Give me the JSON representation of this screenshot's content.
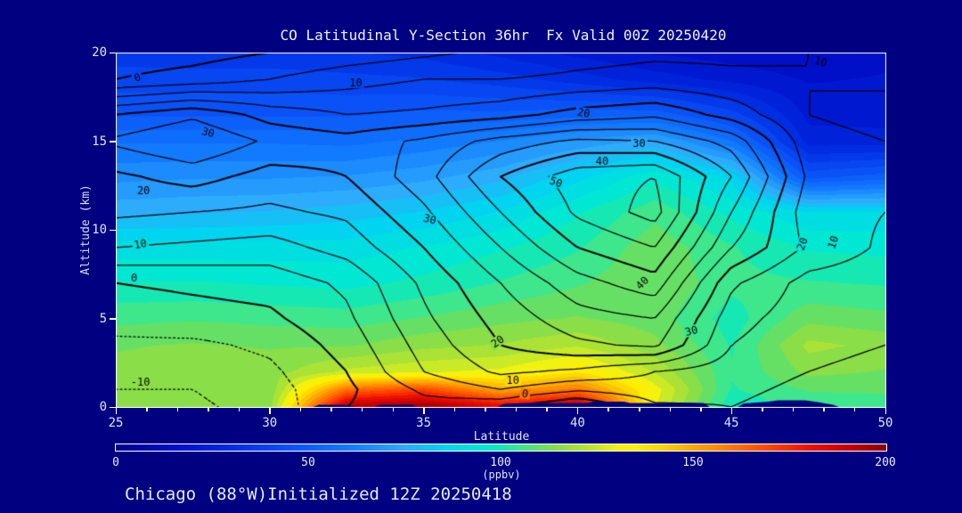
{
  "title": "CO Latitudinal Y-Section 36hr  Fx Valid 00Z 20250420",
  "footer": "Chicago (88°W)Initialized 12Z 20250418",
  "colors": {
    "background": "#010080",
    "frame": "#ffffff",
    "text": "#e8ebf7",
    "contour_line": "#000000",
    "terrain": "#010080"
  },
  "axes": {
    "x": {
      "label": "Latitude",
      "min": 25,
      "max": 50,
      "ticks": [
        25,
        30,
        35,
        40,
        45,
        50
      ],
      "minor_step": 1
    },
    "y": {
      "label": "Altitude (km)",
      "min": 0,
      "max": 20,
      "ticks": [
        0,
        5,
        10,
        15,
        20
      ]
    }
  },
  "colorbar": {
    "min": 0,
    "max": 200,
    "ticks": [
      0,
      50,
      100,
      150,
      200
    ],
    "units": "(ppbv)",
    "stops": [
      [
        0,
        0,
        0,
        140
      ],
      [
        15,
        0,
        15,
        200
      ],
      [
        30,
        0,
        45,
        225
      ],
      [
        45,
        10,
        82,
        248
      ],
      [
        60,
        18,
        122,
        255
      ],
      [
        75,
        45,
        172,
        252
      ],
      [
        85,
        0,
        212,
        240
      ],
      [
        95,
        0,
        232,
        212
      ],
      [
        100,
        22,
        232,
        180
      ],
      [
        105,
        62,
        230,
        140
      ],
      [
        110,
        102,
        224,
        100
      ],
      [
        115,
        138,
        222,
        72
      ],
      [
        120,
        170,
        226,
        54
      ],
      [
        125,
        202,
        233,
        38
      ],
      [
        130,
        242,
        242,
        16
      ],
      [
        135,
        255,
        238,
        0
      ],
      [
        142,
        255,
        210,
        0
      ],
      [
        150,
        255,
        168,
        0
      ],
      [
        160,
        255,
        118,
        0
      ],
      [
        170,
        255,
        66,
        0
      ],
      [
        180,
        236,
        18,
        0
      ],
      [
        190,
        200,
        0,
        0
      ],
      [
        200,
        140,
        0,
        0
      ]
    ]
  },
  "chart_data": {
    "type": "heatmap",
    "title": "CO Latitudinal Y-Section 36hr  Fx Valid 00Z 20250420",
    "xlabel": "Latitude",
    "ylabel": "Altitude (km)",
    "xlim": [
      25,
      50
    ],
    "ylim": [
      0,
      20
    ],
    "fill_units": "ppbv",
    "fill_range": [
      0,
      200
    ],
    "fill_quantize_step": 5,
    "fill_field": {
      "lats": [
        25,
        27.5,
        30,
        32.5,
        35,
        37.5,
        40,
        42.5,
        45,
        47.5,
        50
      ],
      "alts": [
        0,
        1,
        2,
        3.5,
        5,
        7,
        9,
        11,
        13,
        15,
        16.5,
        18.5,
        20
      ],
      "values": [
        [
          113,
          113,
          116,
          196,
          200,
          186,
          196,
          128,
          98,
          104,
          106
        ],
        [
          113,
          113,
          114,
          162,
          170,
          150,
          160,
          130,
          102,
          108,
          108
        ],
        [
          114,
          115,
          115,
          124,
          127,
          129,
          137,
          122,
          103,
          114,
          112
        ],
        [
          112,
          113,
          112,
          112,
          116,
          118,
          122,
          114,
          102,
          119,
          116
        ],
        [
          106,
          107,
          106,
          105,
          108,
          111,
          113,
          110,
          100,
          111,
          109
        ],
        [
          98,
          98,
          97,
          96,
          99,
          103,
          107,
          112,
          104,
          103,
          102
        ],
        [
          90,
          90,
          90,
          90,
          93,
          97,
          102,
          111,
          103,
          97,
          96
        ],
        [
          76,
          77,
          78,
          80,
          83,
          88,
          97,
          106,
          96,
          88,
          88
        ],
        [
          66,
          67,
          67,
          68,
          71,
          76,
          86,
          96,
          86,
          46,
          50
        ],
        [
          57,
          57,
          57,
          56,
          59,
          63,
          69,
          74,
          58,
          25,
          25
        ],
        [
          47,
          47,
          47,
          47,
          49,
          49,
          51,
          51,
          40,
          21,
          20
        ],
        [
          40,
          40,
          40,
          39,
          38,
          35,
          30,
          25,
          21,
          17,
          18
        ],
        [
          35,
          34,
          34,
          33,
          31,
          26,
          21,
          17,
          15,
          13,
          16
        ]
      ]
    },
    "contour_field": {
      "levels_min": -10,
      "levels_max": 55,
      "levels_step": 5,
      "negative_style": "dotted",
      "bold_every": 20,
      "lats": [
        25,
        27.5,
        30,
        32.5,
        35,
        37.5,
        40,
        42.5,
        45,
        47.5,
        50
      ],
      "alts": [
        0,
        1,
        2,
        3.5,
        5,
        7,
        9,
        11,
        13,
        15,
        16.5,
        18.5,
        20
      ],
      "values": [
        [
          -12,
          -11,
          -8,
          0,
          3,
          1,
          -6,
          4,
          5,
          3,
          2
        ],
        [
          -10,
          -10,
          -7,
          -1,
          6,
          10,
          6,
          8,
          6,
          4,
          3
        ],
        [
          -8,
          -8,
          -6,
          0,
          10,
          16,
          14,
          10,
          7,
          5,
          4
        ],
        [
          -6,
          -6,
          -4,
          2,
          12,
          20,
          24,
          26,
          10,
          6,
          5
        ],
        [
          -3,
          -2,
          -1,
          4,
          14,
          22,
          28,
          30,
          12,
          7,
          6
        ],
        [
          0,
          1,
          2,
          6,
          16,
          25,
          33,
          38,
          16,
          8,
          7
        ],
        [
          10,
          9,
          8,
          12,
          20,
          30,
          40,
          45,
          25,
          14,
          9
        ],
        [
          16,
          15,
          14,
          16,
          24,
          35,
          46,
          52,
          30,
          12,
          10
        ],
        [
          19,
          22,
          18,
          20,
          28,
          40,
          48,
          50,
          35,
          14,
          12
        ],
        [
          26,
          30,
          24,
          22,
          26,
          32,
          36,
          35,
          28,
          12,
          10
        ],
        [
          20,
          24,
          18,
          15,
          16,
          18,
          22,
          24,
          18,
          10,
          8
        ],
        [
          0,
          2,
          5,
          8,
          10,
          10,
          11,
          12,
          11,
          10,
          11
        ],
        [
          -3,
          -2,
          0,
          2,
          4,
          6,
          8,
          9,
          9,
          10,
          11
        ]
      ]
    },
    "contour_labels": [
      {
        "lat": 25.7,
        "alt": 18.6,
        "text": "0",
        "rot": -20
      },
      {
        "lat": 32.8,
        "alt": 18.3,
        "text": "10",
        "rot": 0
      },
      {
        "lat": 47.9,
        "alt": 19.5,
        "text": "10",
        "rot": 15
      },
      {
        "lat": 40.2,
        "alt": 16.6,
        "text": "20",
        "rot": 10
      },
      {
        "lat": 28.0,
        "alt": 15.5,
        "text": "30",
        "rot": 15
      },
      {
        "lat": 42.0,
        "alt": 14.9,
        "text": "30",
        "rot": 0
      },
      {
        "lat": 25.9,
        "alt": 12.2,
        "text": "20",
        "rot": 0
      },
      {
        "lat": 40.8,
        "alt": 13.9,
        "text": "40",
        "rot": 0
      },
      {
        "lat": 39.3,
        "alt": 12.7,
        "text": "50",
        "rot": 20
      },
      {
        "lat": 35.2,
        "alt": 10.6,
        "text": "30",
        "rot": 15
      },
      {
        "lat": 25.8,
        "alt": 9.2,
        "text": "10",
        "rot": -10
      },
      {
        "lat": 25.6,
        "alt": 7.3,
        "text": "0",
        "rot": 0
      },
      {
        "lat": 42.1,
        "alt": 7.0,
        "text": "40",
        "rot": -45
      },
      {
        "lat": 47.3,
        "alt": 9.2,
        "text": "20",
        "rot": -70
      },
      {
        "lat": 48.3,
        "alt": 9.3,
        "text": "10",
        "rot": -70
      },
      {
        "lat": 43.7,
        "alt": 4.3,
        "text": "30",
        "rot": -15
      },
      {
        "lat": 37.4,
        "alt": 3.7,
        "text": "20",
        "rot": -35
      },
      {
        "lat": 25.8,
        "alt": 1.4,
        "text": "-10",
        "rot": 0
      },
      {
        "lat": 37.9,
        "alt": 1.5,
        "text": "10",
        "rot": 0
      },
      {
        "lat": 38.3,
        "alt": 0.75,
        "text": "0",
        "rot": 10
      }
    ],
    "terrain_profile": [
      [
        25,
        0
      ],
      [
        31.4,
        0
      ],
      [
        31.6,
        0.12
      ],
      [
        32.4,
        0.12
      ],
      [
        32.8,
        0
      ],
      [
        33.4,
        0
      ],
      [
        33.6,
        0.12
      ],
      [
        34.6,
        0.12
      ],
      [
        34.8,
        0
      ],
      [
        37.4,
        0
      ],
      [
        37.6,
        0.18
      ],
      [
        38.5,
        0.22
      ],
      [
        40.3,
        0.22
      ],
      [
        40.5,
        0.3
      ],
      [
        41.5,
        0.3
      ],
      [
        41.7,
        0.22
      ],
      [
        44.1,
        0.22
      ],
      [
        44.3,
        0
      ],
      [
        45.2,
        0
      ],
      [
        45.4,
        0.2
      ],
      [
        46.2,
        0.3
      ],
      [
        46.5,
        0.38
      ],
      [
        47.4,
        0.38
      ],
      [
        47.8,
        0.28
      ],
      [
        48.3,
        0.12
      ],
      [
        48.5,
        0
      ],
      [
        50,
        0
      ]
    ]
  }
}
